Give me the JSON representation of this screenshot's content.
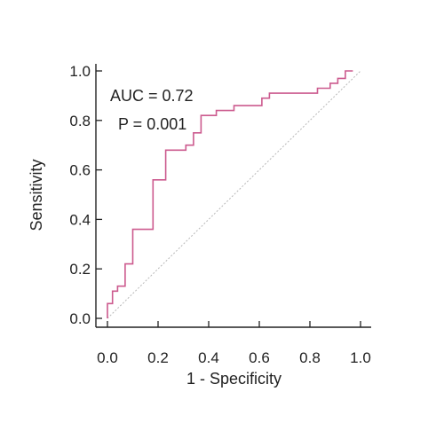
{
  "chart_data": {
    "type": "line",
    "title": "",
    "xlabel": "1 - Specificity",
    "ylabel": "Sensitivity",
    "xlim": [
      0,
      1
    ],
    "ylim": [
      0,
      1
    ],
    "x_ticks": [
      "0.0",
      "0.2",
      "0.4",
      "0.6",
      "0.8",
      "1.0"
    ],
    "y_ticks": [
      "0.0",
      "0.2",
      "0.4",
      "0.6",
      "0.8",
      "1.0"
    ],
    "grid": false,
    "legend": "none",
    "annotations": [
      "AUC = 0.72",
      "P = 0.001"
    ],
    "colors": {
      "roc": "#cc5a8e",
      "reference": "#b8b8b8",
      "axis": "#222222"
    },
    "series": [
      {
        "x": [
          0,
          0,
          0.02,
          0.02,
          0.04,
          0.04,
          0.07,
          0.07,
          0.1,
          0.1,
          0.18,
          0.18,
          0.23,
          0.23,
          0.31,
          0.31,
          0.34,
          0.34,
          0.37,
          0.37,
          0.43,
          0.43,
          0.5,
          0.5,
          0.61,
          0.61,
          0.64,
          0.64,
          0.83,
          0.83,
          0.88,
          0.88,
          0.91,
          0.91,
          0.94,
          0.94,
          0.97
        ],
        "y": [
          0,
          0.06,
          0.06,
          0.11,
          0.11,
          0.13,
          0.13,
          0.22,
          0.22,
          0.36,
          0.36,
          0.56,
          0.56,
          0.68,
          0.68,
          0.7,
          0.7,
          0.75,
          0.75,
          0.82,
          0.82,
          0.84,
          0.84,
          0.86,
          0.86,
          0.89,
          0.89,
          0.91,
          0.91,
          0.93,
          0.93,
          0.95,
          0.95,
          0.97,
          0.97,
          1.0,
          1.0
        ]
      },
      {
        "x": [
          0,
          1
        ],
        "y": [
          0,
          1
        ]
      }
    ]
  }
}
